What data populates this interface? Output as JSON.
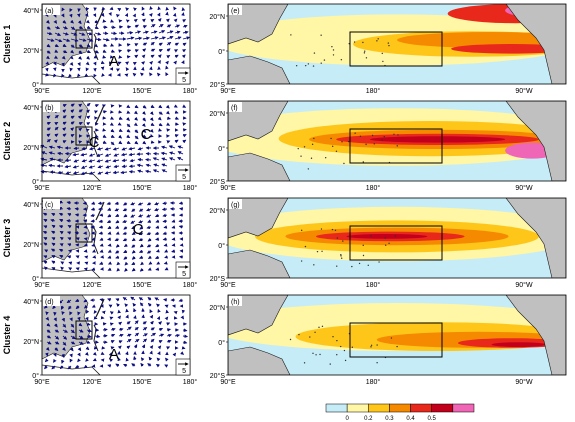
{
  "figure": {
    "rows": [
      {
        "cluster_label": "Cluster 1",
        "wind_tag": "(a)",
        "sst_tag": "(e)",
        "circulation_letters": [
          "A"
        ],
        "wind_lat_labels": [
          "40°N",
          "20°N",
          "0°"
        ],
        "wind_lon_labels": [
          "90°E",
          "120°E",
          "150°E",
          "180°"
        ],
        "sst_lat_labels": [
          "20°N",
          "0°",
          "20°S"
        ],
        "sst_lon_labels": [
          "90°E",
          "180°",
          "90°W"
        ],
        "ref_vector": "5"
      },
      {
        "cluster_label": "Cluster 2",
        "wind_tag": "(b)",
        "sst_tag": "(f)",
        "circulation_letters": [
          "C",
          "C"
        ],
        "wind_lat_labels": [
          "40°N",
          "20°N",
          "0°"
        ],
        "wind_lon_labels": [
          "90°E",
          "120°E",
          "150°E",
          "180°"
        ],
        "sst_lat_labels": [
          "20°N",
          "0°",
          "20°S"
        ],
        "sst_lon_labels": [
          "90°E",
          "180°",
          "90°W"
        ],
        "ref_vector": "5"
      },
      {
        "cluster_label": "Cluster 3",
        "wind_tag": "(c)",
        "sst_tag": "(g)",
        "circulation_letters": [
          "C"
        ],
        "wind_lat_labels": [
          "40°N",
          "20°N",
          "0°"
        ],
        "wind_lon_labels": [
          "90°E",
          "120°E",
          "150°E",
          "180°"
        ],
        "sst_lat_labels": [
          "20°N",
          "0°",
          "20°S"
        ],
        "sst_lon_labels": [
          "90°E",
          "180°",
          "90°W"
        ],
        "ref_vector": "5"
      },
      {
        "cluster_label": "Cluster 4",
        "wind_tag": "(d)",
        "sst_tag": "(h)",
        "circulation_letters": [
          "A"
        ],
        "wind_lat_labels": [
          "40°N",
          "20°N",
          "0°"
        ],
        "wind_lon_labels": [
          "90°E",
          "120°E",
          "150°E",
          "180°"
        ],
        "sst_lat_labels": [
          "20°N",
          "0°",
          "20°S"
        ],
        "sst_lon_labels": [
          "90°E",
          "180°",
          "90°W"
        ],
        "ref_vector": "5"
      }
    ],
    "colorbar": {
      "tick_labels": [
        "0",
        "0.2",
        "0.3",
        "0.4",
        "0.5"
      ],
      "colors": [
        "#c6ecf7",
        "#fff6a6",
        "#ffc61a",
        "#f58a00",
        "#e8281b",
        "#c2001c",
        "#f066b6"
      ]
    },
    "colors": {
      "land": "#c0c0c0",
      "coast": "#1a1a1a",
      "vector": "#0d0d85",
      "sst_cool": "#c6ecf7",
      "sst_levels": [
        "#fff6a6",
        "#ffc61a",
        "#f58a00",
        "#e8281b",
        "#c2001c",
        "#f066b6"
      ]
    }
  }
}
